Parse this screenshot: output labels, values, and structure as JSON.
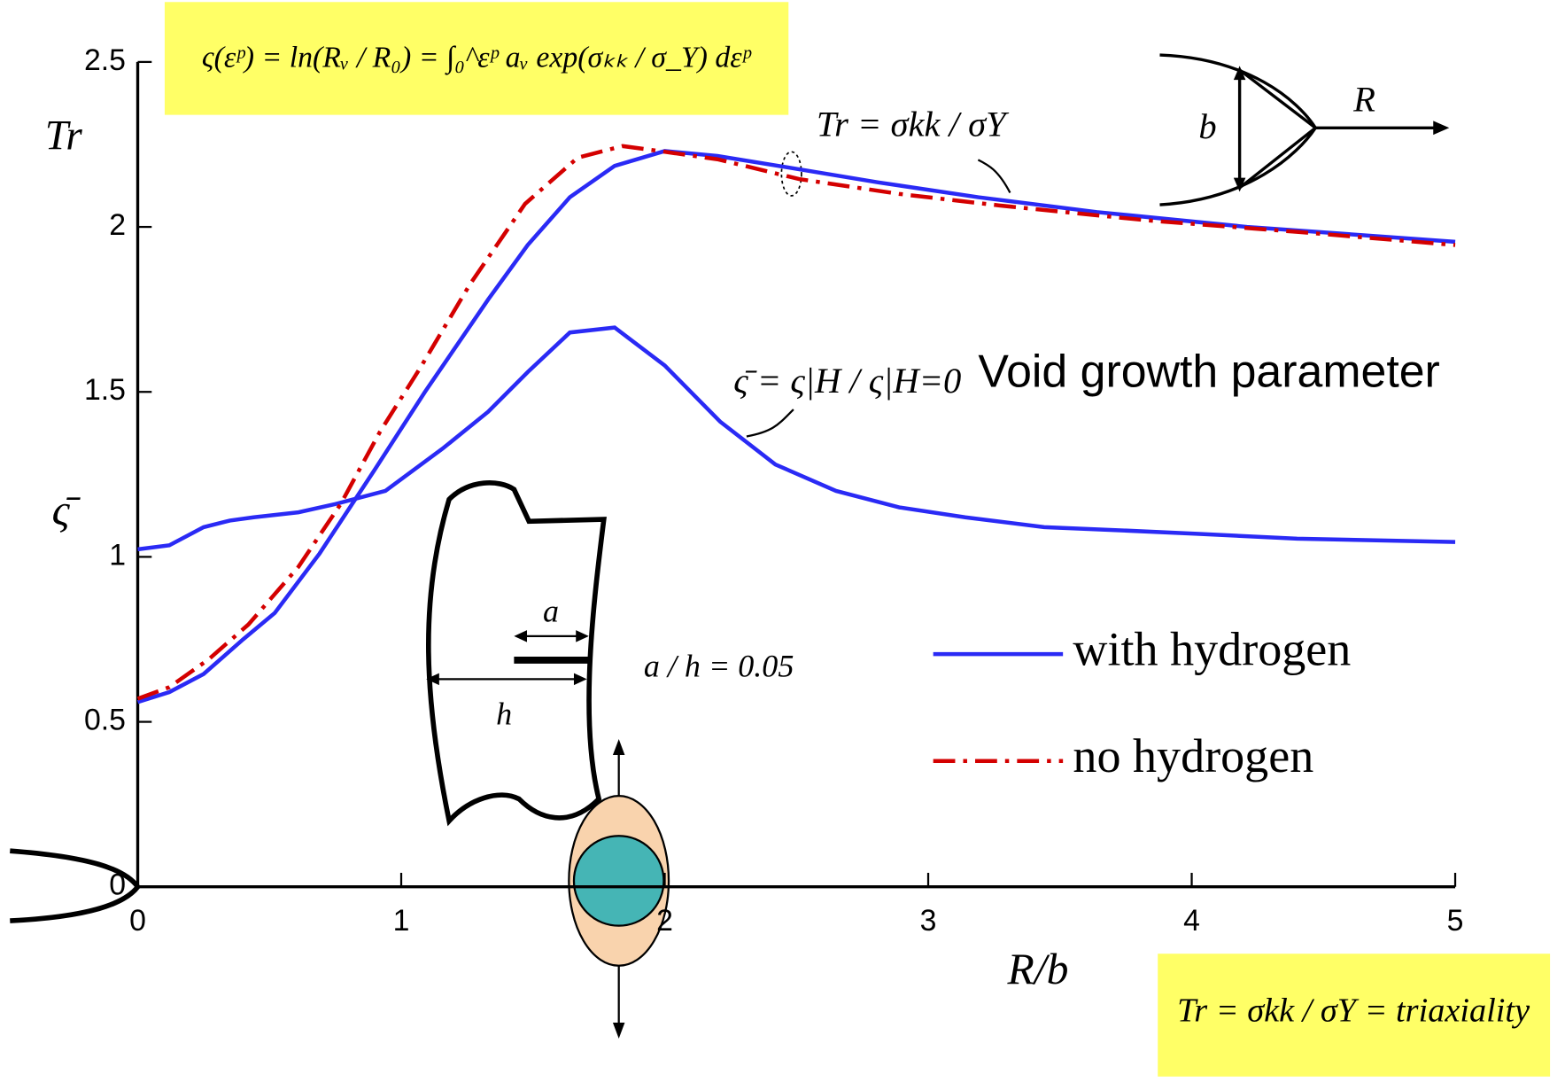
{
  "chart_data": {
    "type": "line",
    "formula_box": "ς(εᵖ) = ln(Rᵥ / R₀) = ∫₀^εᵖ aᵥ exp(σₖₖ / σ_Y) dεᵖ",
    "triaxiality_box": "Tr = σkk / σY = triaxiality",
    "y_labels": [
      "Tr",
      "ς̄"
    ],
    "x_label": "R/b",
    "xlim": [
      0,
      5
    ],
    "xticks": [
      0,
      1,
      2,
      3,
      4,
      5
    ],
    "ylim": [
      0,
      2.5
    ],
    "yticks": [
      0,
      0.5,
      1,
      1.5,
      2,
      2.5
    ],
    "grid": false,
    "legend": "right",
    "series": [
      {
        "name": "with hydrogen",
        "color": "#2a2af5",
        "dash": false,
        "x": [
          0,
          0.12,
          0.25,
          0.4,
          0.52,
          0.69,
          0.9,
          1.09,
          1.33,
          1.48,
          1.64,
          1.81,
          2.0,
          2.2,
          2.47,
          2.81,
          3.19,
          3.64,
          4.21,
          5
        ],
        "values": [
          0.56,
          0.59,
          0.645,
          0.75,
          0.83,
          1.01,
          1.265,
          1.5,
          1.78,
          1.945,
          2.09,
          2.185,
          2.23,
          2.215,
          2.18,
          2.135,
          2.09,
          2.045,
          2.0,
          1.955
        ]
      },
      {
        "name": "no hydrogen",
        "color": "#d40000",
        "dash": true,
        "x": [
          0,
          0.12,
          0.27,
          0.42,
          0.61,
          0.77,
          0.92,
          1.07,
          1.26,
          1.47,
          1.67,
          1.84,
          1.98,
          2.2,
          2.51,
          2.89,
          3.27,
          3.83,
          4.4,
          5
        ],
        "values": [
          0.57,
          0.605,
          0.69,
          0.795,
          0.97,
          1.16,
          1.38,
          1.57,
          1.825,
          2.07,
          2.21,
          2.245,
          2.23,
          2.205,
          2.145,
          2.1,
          2.065,
          2.02,
          1.985,
          1.945
        ]
      }
    ],
    "void_growth": {
      "label": "Void growth parameter",
      "color": "#2a2af5",
      "x": [
        0,
        0.12,
        0.25,
        0.35,
        0.44,
        0.61,
        0.75,
        0.94,
        1.16,
        1.33,
        1.48,
        1.64,
        1.81,
        2.0,
        2.21,
        2.42,
        2.65,
        2.89,
        3.14,
        3.44,
        3.74,
        4.02,
        4.4,
        5
      ],
      "values": [
        1.023,
        1.035,
        1.09,
        1.11,
        1.12,
        1.135,
        1.16,
        1.2,
        1.33,
        1.44,
        1.56,
        1.68,
        1.695,
        1.58,
        1.41,
        1.28,
        1.2,
        1.15,
        1.12,
        1.09,
        1.08,
        1.07,
        1.055,
        1.045
      ]
    },
    "annotations": {
      "tr_curve": "Tr = σkk / σY",
      "void_formula": "ς̄ = ς|H / ς|H=0",
      "ratio": "a / h = 0.05",
      "a": "a",
      "h": "h",
      "b": "b",
      "R": "R"
    }
  }
}
